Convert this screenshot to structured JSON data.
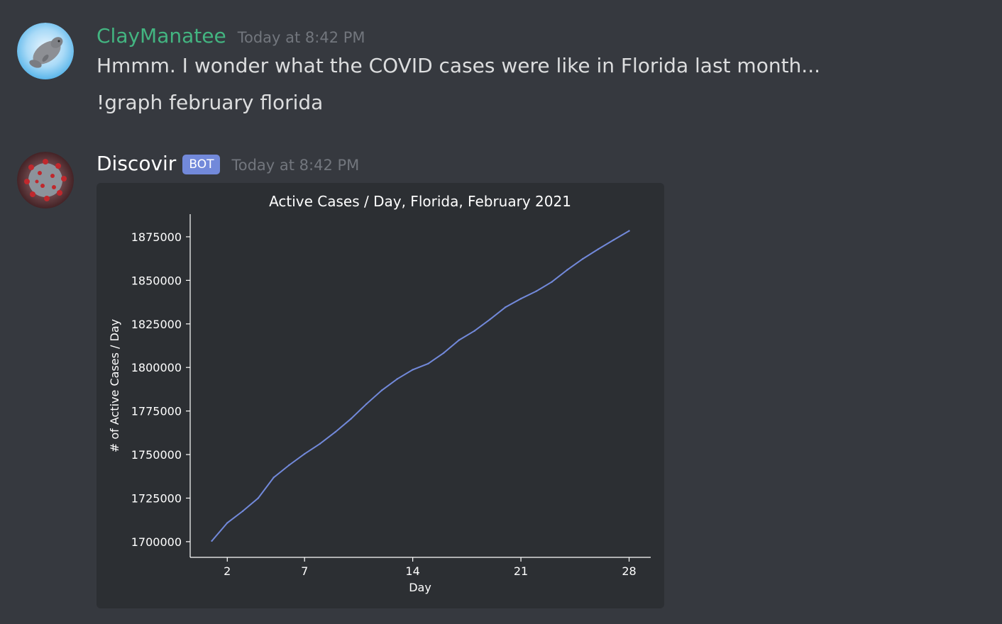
{
  "messages": [
    {
      "author": "ClayManatee",
      "author_color": "#43b581",
      "timestamp": "Today at 8:42 PM",
      "avatar_icon": "manatee-avatar",
      "lines": [
        "Hmmm. I wonder what the COVID cases were like in Florida last month...",
        "!graph february florida"
      ]
    },
    {
      "author": "Discovir",
      "author_color": "#ffffff",
      "badge": "BOT",
      "badge_color": "#7289da",
      "timestamp": "Today at 8:42 PM",
      "avatar_icon": "coronavirus-avatar"
    }
  ],
  "chart_data": {
    "type": "line",
    "title": "Active Cases / Day, Florida, February 2021",
    "xlabel": "Day",
    "ylabel": "# of Active Cases / Day",
    "x_ticks": [
      2,
      7,
      14,
      21,
      28
    ],
    "y_ticks": [
      1700000,
      1725000,
      1750000,
      1775000,
      1800000,
      1825000,
      1850000,
      1875000
    ],
    "xlim": [
      -0.4,
      29.4
    ],
    "ylim": [
      1691000,
      1888000
    ],
    "grid": false,
    "line_color": "#7289da",
    "series": [
      {
        "x": [
          1,
          2,
          3,
          4,
          5,
          6,
          7,
          8,
          9,
          10,
          11,
          12,
          13,
          14,
          15,
          16,
          17,
          18,
          19,
          20,
          21,
          22,
          23,
          24,
          25,
          26,
          27,
          28
        ],
        "values": [
          1700400,
          1710800,
          1717500,
          1725000,
          1736800,
          1743900,
          1750400,
          1756200,
          1763000,
          1770500,
          1779000,
          1786900,
          1793400,
          1798700,
          1802200,
          1808300,
          1815700,
          1821000,
          1827600,
          1834600,
          1839500,
          1843800,
          1849100,
          1856000,
          1862300,
          1867900,
          1873200,
          1878400
        ]
      }
    ]
  }
}
